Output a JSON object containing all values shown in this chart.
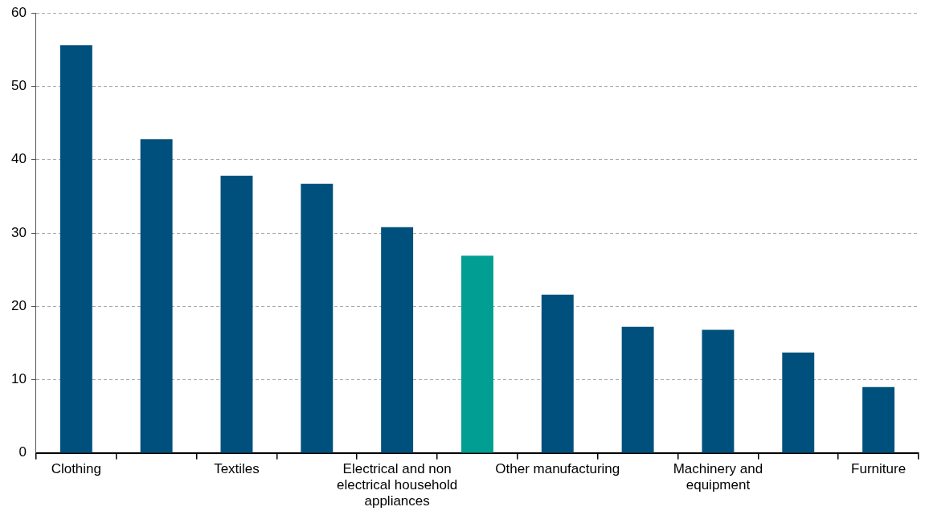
{
  "chart_data": {
    "type": "bar",
    "categories": [
      "Clothing",
      null,
      "Textiles",
      null,
      "Electrical and non electrical household appliances",
      null,
      "Other manufacturing",
      null,
      "Machinery and equipment",
      null,
      "Furniture"
    ],
    "values": [
      55.6,
      42.8,
      37.8,
      36.7,
      30.8,
      26.9,
      21.6,
      17.2,
      16.8,
      13.7,
      9.0
    ],
    "colors": [
      "#00507d",
      "#00507d",
      "#00507d",
      "#00507d",
      "#00507d",
      "#009e93",
      "#00507d",
      "#00507d",
      "#00507d",
      "#00507d",
      "#00507d"
    ],
    "ylim": [
      0,
      60
    ],
    "yticks": [
      0,
      10,
      20,
      30,
      40,
      50,
      60
    ],
    "grid": "y",
    "legend": false
  }
}
